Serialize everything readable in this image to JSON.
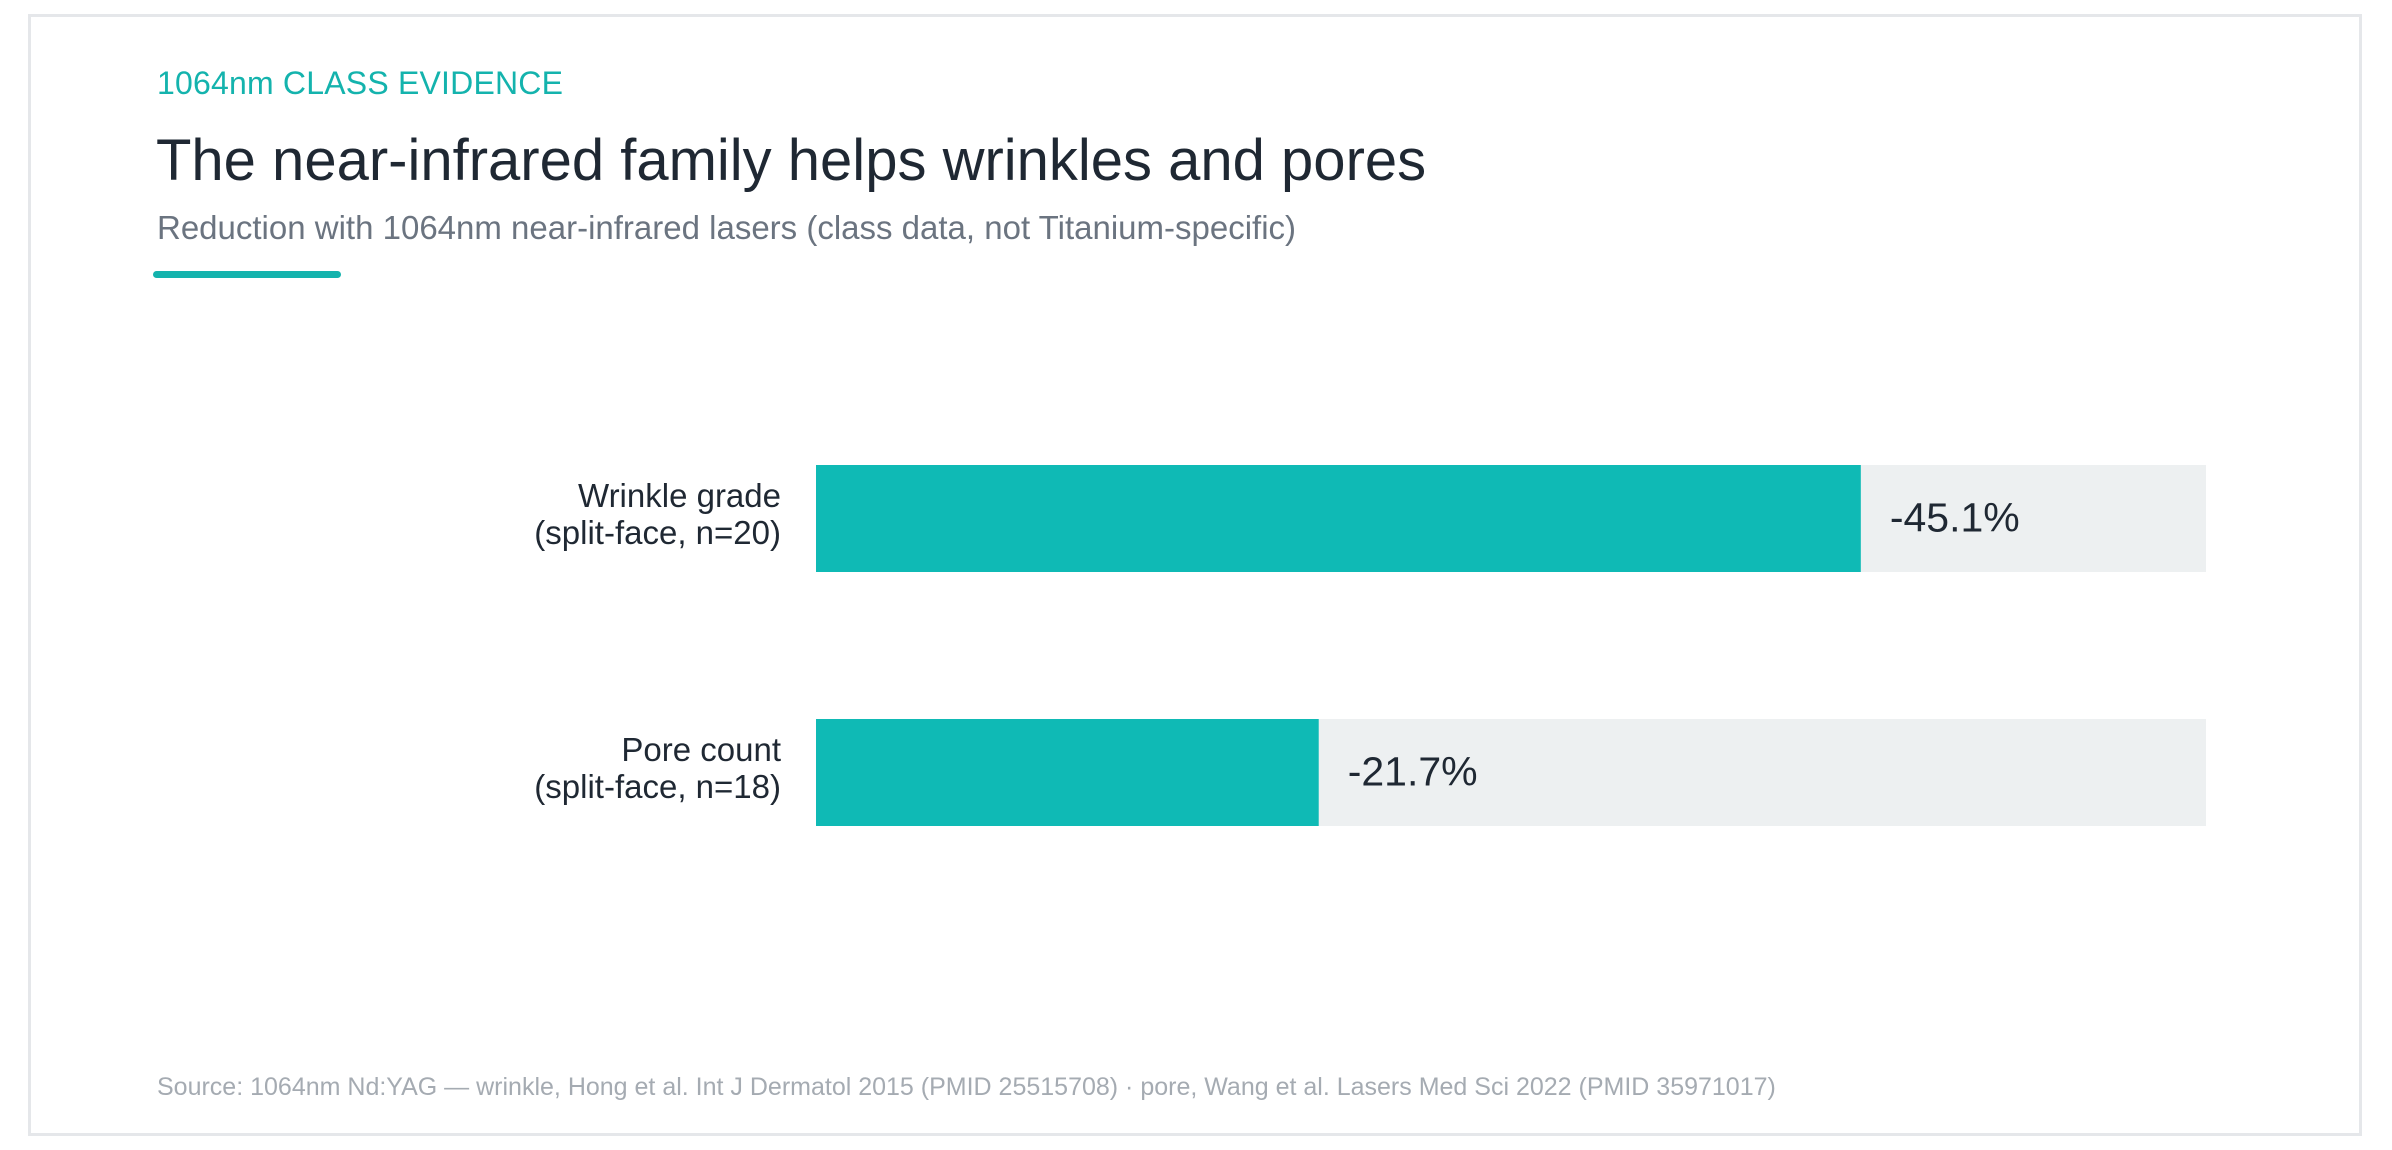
{
  "header": {
    "eyebrow": "1064nm CLASS EVIDENCE",
    "title": "The near-infrared family helps wrinkles and pores",
    "subtitle": "Reduction with 1064nm near-infrared lasers (class data, not Titanium-specific)"
  },
  "chart_data": {
    "type": "bar",
    "orientation": "horizontal",
    "categories": [
      [
        "Wrinkle grade",
        "(split-face, n=20)"
      ],
      [
        "Pore count",
        "(split-face, n=18)"
      ]
    ],
    "values": [
      -45.1,
      -21.7
    ],
    "value_labels": [
      "-45.1%",
      "-21.7%"
    ],
    "xlim": [
      0,
      -60
    ],
    "grid": false,
    "legend": "none",
    "colors": {
      "bar": "#0fbab5",
      "track": "#edf0f1",
      "label": "#1f2833",
      "value": "#1f2833"
    }
  },
  "footer": {
    "source": "Source: 1064nm Nd:YAG — wrinkle, Hong et al. Int J Dermatol 2015 (PMID 25515708) · pore, Wang et al. Lasers Med Sci 2022 (PMID 35971017)"
  }
}
